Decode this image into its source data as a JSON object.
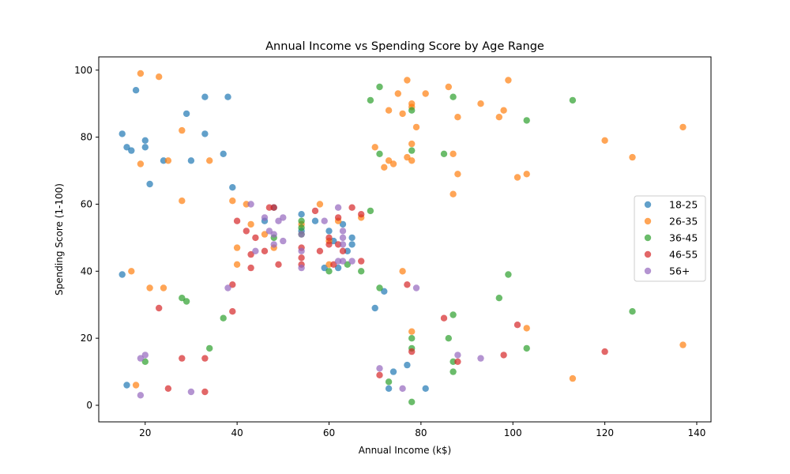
{
  "chart_data": {
    "type": "scatter",
    "title": "Annual Income vs Spending Score by Age Range",
    "xlabel": "Annual Income (k$)",
    "ylabel": "Spending Score (1-100)",
    "xlim": [
      9.9,
      143.1
    ],
    "ylim": [
      -4.95,
      103.95
    ],
    "xticks": [
      20,
      40,
      60,
      80,
      100,
      120,
      140
    ],
    "yticks": [
      0,
      20,
      40,
      60,
      80,
      100
    ],
    "grid": false,
    "legend_position": "right",
    "series": [
      {
        "name": "18-25",
        "color": "#1f77b4",
        "points": [
          [
            15,
            39
          ],
          [
            15,
            81
          ],
          [
            16,
            6
          ],
          [
            16,
            77
          ],
          [
            17,
            76
          ],
          [
            18,
            94
          ],
          [
            20,
            79
          ],
          [
            20,
            77
          ],
          [
            21,
            66
          ],
          [
            24,
            73
          ],
          [
            29,
            87
          ],
          [
            30,
            73
          ],
          [
            33,
            81
          ],
          [
            33,
            92
          ],
          [
            37,
            75
          ],
          [
            38,
            92
          ],
          [
            39,
            65
          ],
          [
            46,
            55
          ],
          [
            48,
            59
          ],
          [
            54,
            57
          ],
          [
            54,
            52
          ],
          [
            57,
            55
          ],
          [
            59,
            41
          ],
          [
            60,
            52
          ],
          [
            61,
            49
          ],
          [
            62,
            41
          ],
          [
            63,
            54
          ],
          [
            64,
            46
          ],
          [
            65,
            48
          ],
          [
            65,
            50
          ],
          [
            70,
            29
          ],
          [
            72,
            34
          ],
          [
            73,
            5
          ],
          [
            74,
            10
          ],
          [
            77,
            12
          ],
          [
            81,
            5
          ]
        ]
      },
      {
        "name": "26-35",
        "color": "#ff7f0e",
        "points": [
          [
            17,
            40
          ],
          [
            18,
            6
          ],
          [
            19,
            99
          ],
          [
            19,
            72
          ],
          [
            21,
            35
          ],
          [
            23,
            98
          ],
          [
            24,
            35
          ],
          [
            25,
            73
          ],
          [
            28,
            82
          ],
          [
            28,
            61
          ],
          [
            34,
            73
          ],
          [
            39,
            61
          ],
          [
            40,
            47
          ],
          [
            40,
            42
          ],
          [
            42,
            60
          ],
          [
            43,
            54
          ],
          [
            46,
            51
          ],
          [
            48,
            47
          ],
          [
            54,
            54
          ],
          [
            58,
            60
          ],
          [
            60,
            42
          ],
          [
            60,
            49
          ],
          [
            62,
            55
          ],
          [
            67,
            56
          ],
          [
            70,
            77
          ],
          [
            72,
            71
          ],
          [
            73,
            88
          ],
          [
            73,
            73
          ],
          [
            74,
            72
          ],
          [
            75,
            93
          ],
          [
            76,
            87
          ],
          [
            76,
            40
          ],
          [
            77,
            97
          ],
          [
            77,
            74
          ],
          [
            78,
            90
          ],
          [
            78,
            89
          ],
          [
            78,
            78
          ],
          [
            78,
            73
          ],
          [
            78,
            22
          ],
          [
            79,
            83
          ],
          [
            81,
            93
          ],
          [
            86,
            95
          ],
          [
            87,
            63
          ],
          [
            87,
            75
          ],
          [
            88,
            86
          ],
          [
            88,
            69
          ],
          [
            93,
            90
          ],
          [
            97,
            86
          ],
          [
            98,
            88
          ],
          [
            99,
            97
          ],
          [
            101,
            68
          ],
          [
            103,
            69
          ],
          [
            103,
            23
          ],
          [
            113,
            8
          ],
          [
            120,
            79
          ],
          [
            126,
            74
          ],
          [
            137,
            83
          ],
          [
            137,
            18
          ]
        ]
      },
      {
        "name": "36-45",
        "color": "#2ca02c",
        "points": [
          [
            20,
            13
          ],
          [
            28,
            32
          ],
          [
            29,
            31
          ],
          [
            34,
            17
          ],
          [
            37,
            26
          ],
          [
            48,
            50
          ],
          [
            54,
            55
          ],
          [
            54,
            53
          ],
          [
            54,
            51
          ],
          [
            60,
            40
          ],
          [
            64,
            42
          ],
          [
            67,
            40
          ],
          [
            69,
            58
          ],
          [
            69,
            91
          ],
          [
            71,
            95
          ],
          [
            71,
            75
          ],
          [
            71,
            35
          ],
          [
            73,
            7
          ],
          [
            78,
            88
          ],
          [
            78,
            76
          ],
          [
            78,
            20
          ],
          [
            78,
            17
          ],
          [
            78,
            1
          ],
          [
            85,
            75
          ],
          [
            86,
            20
          ],
          [
            87,
            92
          ],
          [
            87,
            27
          ],
          [
            87,
            13
          ],
          [
            87,
            10
          ],
          [
            97,
            32
          ],
          [
            99,
            39
          ],
          [
            103,
            85
          ],
          [
            103,
            17
          ],
          [
            113,
            91
          ],
          [
            126,
            28
          ]
        ]
      },
      {
        "name": "46-55",
        "color": "#d62728",
        "points": [
          [
            23,
            29
          ],
          [
            25,
            5
          ],
          [
            28,
            14
          ],
          [
            33,
            14
          ],
          [
            33,
            4
          ],
          [
            39,
            36
          ],
          [
            39,
            28
          ],
          [
            40,
            55
          ],
          [
            42,
            52
          ],
          [
            43,
            45
          ],
          [
            43,
            41
          ],
          [
            44,
            50
          ],
          [
            46,
            46
          ],
          [
            47,
            59
          ],
          [
            48,
            59
          ],
          [
            49,
            42
          ],
          [
            54,
            47
          ],
          [
            54,
            44
          ],
          [
            54,
            42
          ],
          [
            57,
            58
          ],
          [
            58,
            46
          ],
          [
            60,
            48
          ],
          [
            60,
            50
          ],
          [
            61,
            42
          ],
          [
            62,
            48
          ],
          [
            62,
            56
          ],
          [
            63,
            46
          ],
          [
            65,
            59
          ],
          [
            67,
            57
          ],
          [
            67,
            43
          ],
          [
            71,
            9
          ],
          [
            77,
            36
          ],
          [
            78,
            16
          ],
          [
            85,
            26
          ],
          [
            88,
            13
          ],
          [
            98,
            15
          ],
          [
            101,
            24
          ],
          [
            120,
            16
          ]
        ]
      },
      {
        "name": "56+",
        "color": "#9467bd",
        "points": [
          [
            19,
            14
          ],
          [
            19,
            3
          ],
          [
            20,
            15
          ],
          [
            30,
            4
          ],
          [
            38,
            35
          ],
          [
            43,
            60
          ],
          [
            44,
            46
          ],
          [
            46,
            56
          ],
          [
            47,
            52
          ],
          [
            48,
            51
          ],
          [
            48,
            48
          ],
          [
            49,
            55
          ],
          [
            50,
            56
          ],
          [
            50,
            49
          ],
          [
            54,
            41
          ],
          [
            54,
            46
          ],
          [
            54,
            51
          ],
          [
            59,
            55
          ],
          [
            62,
            59
          ],
          [
            62,
            43
          ],
          [
            63,
            43
          ],
          [
            63,
            52
          ],
          [
            63,
            50
          ],
          [
            63,
            48
          ],
          [
            65,
            43
          ],
          [
            71,
            11
          ],
          [
            76,
            5
          ],
          [
            79,
            35
          ],
          [
            88,
            15
          ],
          [
            93,
            14
          ]
        ]
      }
    ]
  }
}
